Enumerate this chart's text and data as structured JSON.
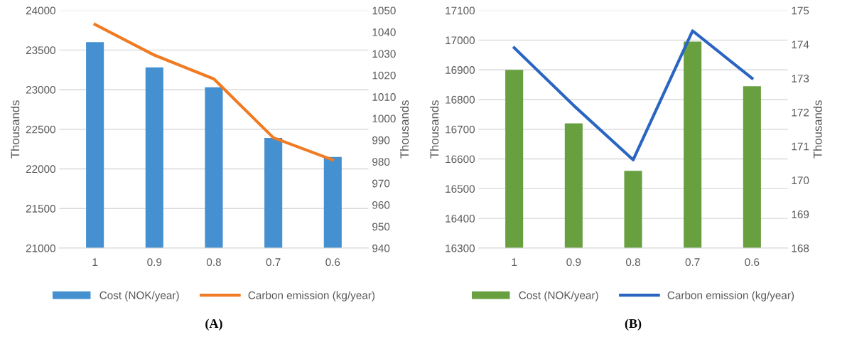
{
  "chart_data": [
    {
      "type": "bar",
      "title": "(A)",
      "categories": [
        "1",
        "0.9",
        "0.8",
        "0.7",
        "0.6"
      ],
      "ylabel": "Thousands",
      "y2label": "Thousands",
      "series": [
        {
          "name": "Cost (NOK/year)",
          "color": "#4490d0",
          "values": [
            23600,
            23280,
            23030,
            22390,
            22150
          ]
        },
        {
          "name": "Carbon emission (kg/year)",
          "type": "line",
          "axis": "y2",
          "color": "#f07b22",
          "values": [
            1043.5,
            1029.3,
            1018.3,
            991.1,
            980.8
          ]
        }
      ],
      "ylim": [
        21000,
        24000
      ],
      "yticks": [
        21000,
        21500,
        22000,
        22500,
        23000,
        23500,
        24000
      ],
      "y2lim": [
        940,
        1050
      ],
      "y2ticks": [
        940,
        950,
        960,
        970,
        980,
        990,
        1000,
        1010,
        1020,
        1030,
        1040,
        1050
      ],
      "grid": "y",
      "legend": "bottom",
      "marker": "none",
      "line_style": "solid"
    },
    {
      "type": "bar",
      "title": "(B)",
      "categories": [
        "1",
        "0.9",
        "0.8",
        "0.7",
        "0.6"
      ],
      "ylabel": "Thousands",
      "y2label": "Thousands",
      "series": [
        {
          "name": "Cost (NOK/year)",
          "color": "#68a040",
          "values": [
            16900,
            16720,
            16560,
            16995,
            16845
          ]
        },
        {
          "name": "Carbon emission (kg/year)",
          "type": "line",
          "axis": "y2",
          "color": "#2b65c2",
          "values": [
            173.9,
            172.2,
            170.6,
            174.4,
            173.0
          ]
        }
      ],
      "ylim": [
        16300,
        17100
      ],
      "yticks": [
        16300,
        16400,
        16500,
        16600,
        16700,
        16800,
        16900,
        17000,
        17100
      ],
      "y2lim": [
        168,
        175
      ],
      "y2ticks": [
        168,
        169,
        170,
        171,
        172,
        173,
        174,
        175
      ],
      "grid": "y",
      "legend": "bottom",
      "marker": "none",
      "line_style": "solid"
    }
  ]
}
